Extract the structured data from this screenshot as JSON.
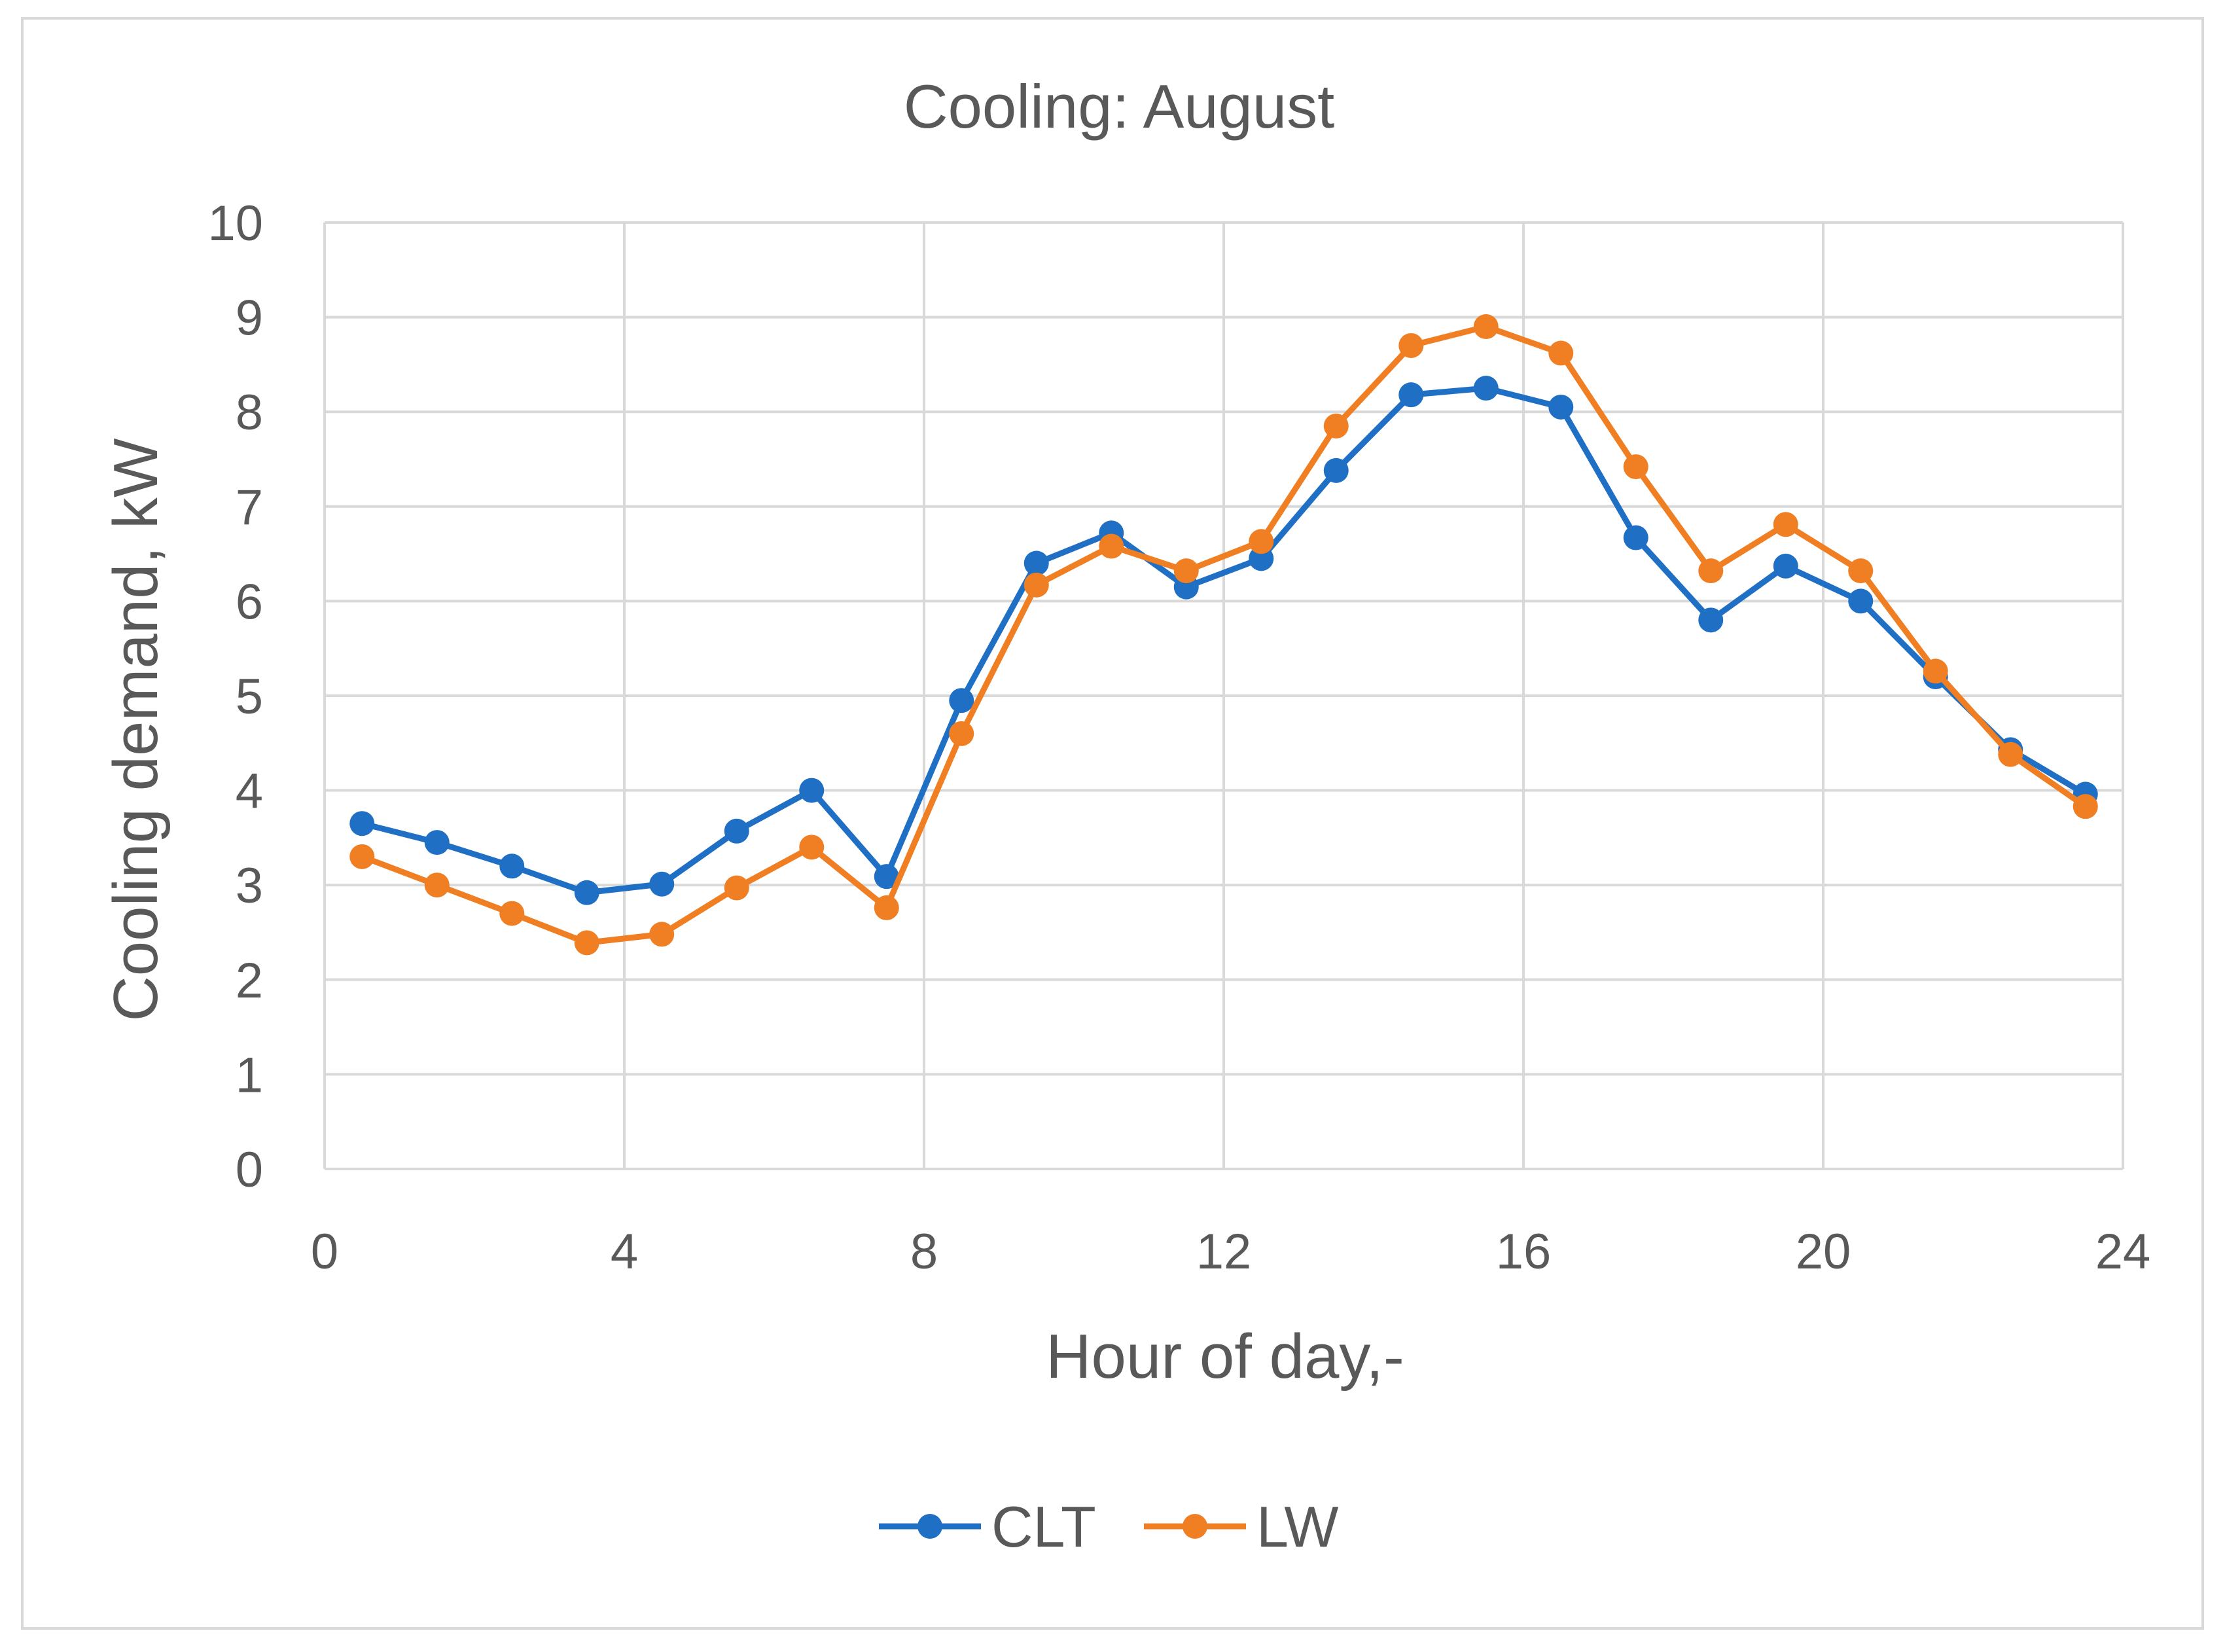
{
  "chart_data": {
    "type": "line",
    "title": "Cooling: August",
    "xlabel": "Hour of day,-",
    "ylabel": "Cooling demand, kW",
    "xlim": [
      0,
      24
    ],
    "ylim": [
      0,
      10
    ],
    "xticks": [
      "0",
      "4",
      "8",
      "12",
      "16",
      "20",
      "24"
    ],
    "yticks": [
      "0",
      "1",
      "2",
      "3",
      "4",
      "5",
      "6",
      "7",
      "8",
      "9",
      "10"
    ],
    "grid": true,
    "legend_position": "bottom",
    "x": [
      0.5,
      1.5,
      2.5,
      3.5,
      4.5,
      5.5,
      6.5,
      7.5,
      8.5,
      9.5,
      10.5,
      11.5,
      12.5,
      13.5,
      14.5,
      15.5,
      16.5,
      17.5,
      18.5,
      19.5,
      20.5,
      21.5,
      22.5,
      23.5
    ],
    "series": [
      {
        "name": "CLT",
        "color": "#1f6fc5",
        "values": [
          3.65,
          3.45,
          3.2,
          2.92,
          3.01,
          3.57,
          4.0,
          3.09,
          4.95,
          6.4,
          6.72,
          6.15,
          6.45,
          7.38,
          8.18,
          8.25,
          8.05,
          6.67,
          5.8,
          6.37,
          6.0,
          5.2,
          4.43,
          3.96
        ]
      },
      {
        "name": "LW",
        "color": "#f07e22",
        "values": [
          3.3,
          3.0,
          2.7,
          2.39,
          2.48,
          2.97,
          3.4,
          2.76,
          4.6,
          6.17,
          6.58,
          6.32,
          6.63,
          7.85,
          8.7,
          8.9,
          8.62,
          7.42,
          6.32,
          6.81,
          6.32,
          5.26,
          4.38,
          3.83
        ]
      }
    ]
  }
}
